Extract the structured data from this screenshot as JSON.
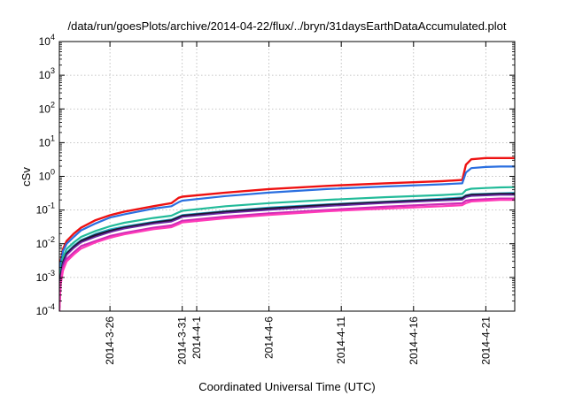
{
  "chart_data": {
    "type": "line",
    "title": "/data/run/goesPlots/archive/2014-04-22/flux/../bryn/31daysEarthDataAccumulated.plot",
    "xlabel": "Coordinated Universal Time (UTC)",
    "ylabel": "cSv",
    "yscale": "log",
    "ylim": [
      0.0001,
      10000
    ],
    "xlim": [
      "2014-03-22T12:00",
      "2014-04-23T00:00"
    ],
    "grid": true,
    "legend": "none",
    "x_ticks": [
      "2014-3-26",
      "2014-3-31",
      "2014-4-1",
      "2014-4-6",
      "2014-4-11",
      "2014-4-16",
      "2014-4-21"
    ],
    "x_tick_dates": [
      "2014-03-26",
      "2014-03-31",
      "2014-04-01",
      "2014-04-06",
      "2014-04-11",
      "2014-04-16",
      "2014-04-21"
    ],
    "y_ticks": [
      {
        "base": "10",
        "exp": "-4",
        "value": 0.0001
      },
      {
        "base": "10",
        "exp": "-3",
        "value": 0.001
      },
      {
        "base": "10",
        "exp": "-2",
        "value": 0.01
      },
      {
        "base": "10",
        "exp": "-1",
        "value": 0.1
      },
      {
        "base": "10",
        "exp": "0",
        "value": 1
      },
      {
        "base": "10",
        "exp": "1",
        "value": 10
      },
      {
        "base": "10",
        "exp": "2",
        "value": 100
      },
      {
        "base": "10",
        "exp": "3",
        "value": 1000
      },
      {
        "base": "10",
        "exp": "4",
        "value": 10000
      }
    ],
    "series": [
      {
        "color": "#ee1111",
        "width": 2.4,
        "x": [
          "2014-03-22T12:00",
          "2014-03-22T14:00",
          "2014-03-22T18:00",
          "2014-03-23T00:00",
          "2014-03-23T12:00",
          "2014-03-24T00:00",
          "2014-03-25T00:00",
          "2014-03-26T00:00",
          "2014-03-27T00:00",
          "2014-03-29T00:00",
          "2014-03-30T06:00",
          "2014-03-30T18:00",
          "2014-03-31T00:00",
          "2014-04-03T00:00",
          "2014-04-06T00:00",
          "2014-04-10T00:00",
          "2014-04-14T00:00",
          "2014-04-18T00:00",
          "2014-04-19T09:00",
          "2014-04-19T15:00",
          "2014-04-20T00:00",
          "2014-04-21T00:00",
          "2014-04-22T00:00",
          "2014-04-23T00:00"
        ],
        "y": [
          0.0004,
          0.003,
          0.007,
          0.012,
          0.02,
          0.03,
          0.05,
          0.07,
          0.09,
          0.13,
          0.16,
          0.23,
          0.25,
          0.33,
          0.42,
          0.52,
          0.62,
          0.72,
          0.78,
          2.2,
          3.2,
          3.5,
          3.5,
          3.5
        ]
      },
      {
        "color": "#2a6fe0",
        "width": 2.2,
        "x": [
          "2014-03-22T12:00",
          "2014-03-22T14:00",
          "2014-03-22T18:00",
          "2014-03-23T00:00",
          "2014-03-23T12:00",
          "2014-03-24T00:00",
          "2014-03-25T00:00",
          "2014-03-26T00:00",
          "2014-03-27T00:00",
          "2014-03-29T00:00",
          "2014-03-30T06:00",
          "2014-03-30T18:00",
          "2014-03-31T00:00",
          "2014-04-03T00:00",
          "2014-04-06T00:00",
          "2014-04-10T00:00",
          "2014-04-14T00:00",
          "2014-04-18T00:00",
          "2014-04-19T09:00",
          "2014-04-19T15:00",
          "2014-04-20T00:00",
          "2014-04-21T00:00",
          "2014-04-22T00:00",
          "2014-04-23T00:00"
        ],
        "y": [
          0.0003,
          0.0025,
          0.006,
          0.01,
          0.016,
          0.025,
          0.04,
          0.06,
          0.075,
          0.11,
          0.13,
          0.17,
          0.19,
          0.26,
          0.33,
          0.42,
          0.5,
          0.58,
          0.62,
          1.3,
          1.75,
          1.9,
          1.95,
          1.95
        ]
      },
      {
        "color": "#22bb99",
        "width": 2.2,
        "x": [
          "2014-03-22T12:00",
          "2014-03-22T14:00",
          "2014-03-22T18:00",
          "2014-03-23T00:00",
          "2014-03-23T12:00",
          "2014-03-24T00:00",
          "2014-03-25T00:00",
          "2014-03-26T00:00",
          "2014-03-27T00:00",
          "2014-03-29T00:00",
          "2014-03-30T06:00",
          "2014-03-30T18:00",
          "2014-03-31T00:00",
          "2014-04-03T00:00",
          "2014-04-06T00:00",
          "2014-04-10T00:00",
          "2014-04-14T00:00",
          "2014-04-18T00:00",
          "2014-04-19T09:00",
          "2014-04-19T15:00",
          "2014-04-20T00:00",
          "2014-04-21T00:00",
          "2014-04-22T00:00",
          "2014-04-23T00:00"
        ],
        "y": [
          0.0002,
          0.0015,
          0.004,
          0.007,
          0.011,
          0.016,
          0.024,
          0.033,
          0.042,
          0.058,
          0.068,
          0.085,
          0.095,
          0.13,
          0.16,
          0.2,
          0.24,
          0.28,
          0.3,
          0.39,
          0.43,
          0.45,
          0.47,
          0.48
        ]
      },
      {
        "color": "#27b0c9",
        "width": 1.6,
        "x": [
          "2014-03-22T12:00",
          "2014-03-22T14:00",
          "2014-03-22T18:00",
          "2014-03-23T00:00",
          "2014-03-23T12:00",
          "2014-03-24T00:00",
          "2014-03-25T00:00",
          "2014-03-26T00:00",
          "2014-03-27T00:00",
          "2014-03-29T00:00",
          "2014-03-30T06:00",
          "2014-03-30T18:00",
          "2014-03-31T00:00",
          "2014-04-03T00:00",
          "2014-04-06T00:00",
          "2014-04-10T00:00",
          "2014-04-14T00:00",
          "2014-04-18T00:00",
          "2014-04-19T09:00",
          "2014-04-19T15:00",
          "2014-04-20T00:00",
          "2014-04-21T00:00",
          "2014-04-22T00:00",
          "2014-04-23T00:00"
        ],
        "y": [
          0.00015,
          0.0011,
          0.003,
          0.0055,
          0.009,
          0.013,
          0.02,
          0.027,
          0.033,
          0.045,
          0.053,
          0.065,
          0.072,
          0.095,
          0.12,
          0.15,
          0.18,
          0.22,
          0.24,
          0.28,
          0.3,
          0.31,
          0.32,
          0.33
        ]
      },
      {
        "color": "#221133",
        "width": 2.6,
        "x": [
          "2014-03-22T12:00",
          "2014-03-22T14:00",
          "2014-03-22T18:00",
          "2014-03-23T00:00",
          "2014-03-23T12:00",
          "2014-03-24T00:00",
          "2014-03-25T00:00",
          "2014-03-26T00:00",
          "2014-03-27T00:00",
          "2014-03-29T00:00",
          "2014-03-30T06:00",
          "2014-03-30T18:00",
          "2014-03-31T00:00",
          "2014-04-03T00:00",
          "2014-04-06T00:00",
          "2014-04-10T00:00",
          "2014-04-14T00:00",
          "2014-04-18T00:00",
          "2014-04-19T09:00",
          "2014-04-19T15:00",
          "2014-04-20T00:00",
          "2014-04-21T00:00",
          "2014-04-22T00:00",
          "2014-04-23T00:00"
        ],
        "y": [
          0.00013,
          0.001,
          0.0027,
          0.005,
          0.008,
          0.012,
          0.018,
          0.024,
          0.03,
          0.042,
          0.049,
          0.06,
          0.067,
          0.088,
          0.11,
          0.14,
          0.17,
          0.2,
          0.22,
          0.26,
          0.28,
          0.29,
          0.3,
          0.3
        ]
      },
      {
        "color": "#6a2aa5",
        "width": 1.6,
        "x": [
          "2014-03-22T12:00",
          "2014-03-22T14:00",
          "2014-03-22T18:00",
          "2014-03-23T00:00",
          "2014-03-23T12:00",
          "2014-03-24T00:00",
          "2014-03-25T00:00",
          "2014-03-26T00:00",
          "2014-03-27T00:00",
          "2014-03-29T00:00",
          "2014-03-30T06:00",
          "2014-03-30T18:00",
          "2014-03-31T00:00",
          "2014-04-03T00:00",
          "2014-04-06T00:00",
          "2014-04-10T00:00",
          "2014-04-14T00:00",
          "2014-04-18T00:00",
          "2014-04-19T09:00",
          "2014-04-19T15:00",
          "2014-04-20T00:00",
          "2014-04-21T00:00",
          "2014-04-22T00:00",
          "2014-04-23T00:00"
        ],
        "y": [
          0.00012,
          0.0009,
          0.0025,
          0.0046,
          0.0074,
          0.011,
          0.016,
          0.022,
          0.028,
          0.039,
          0.045,
          0.055,
          0.062,
          0.082,
          0.1,
          0.13,
          0.16,
          0.19,
          0.2,
          0.24,
          0.26,
          0.27,
          0.28,
          0.28
        ]
      },
      {
        "color": "#cc2ab5",
        "width": 2.2,
        "x": [
          "2014-03-22T12:00",
          "2014-03-22T14:00",
          "2014-03-22T18:00",
          "2014-03-23T00:00",
          "2014-03-23T12:00",
          "2014-03-24T00:00",
          "2014-03-25T00:00",
          "2014-03-26T00:00",
          "2014-03-27T00:00",
          "2014-03-29T00:00",
          "2014-03-30T06:00",
          "2014-03-30T18:00",
          "2014-03-31T00:00",
          "2014-04-03T00:00",
          "2014-04-06T00:00",
          "2014-04-10T00:00",
          "2014-04-14T00:00",
          "2014-04-18T00:00",
          "2014-04-19T09:00",
          "2014-04-19T15:00",
          "2014-04-20T00:00",
          "2014-04-21T00:00",
          "2014-04-22T00:00",
          "2014-04-23T00:00"
        ],
        "y": [
          0.0001,
          0.0007,
          0.0019,
          0.0035,
          0.0056,
          0.0085,
          0.012,
          0.017,
          0.021,
          0.03,
          0.035,
          0.043,
          0.048,
          0.064,
          0.08,
          0.1,
          0.125,
          0.15,
          0.16,
          0.19,
          0.2,
          0.21,
          0.22,
          0.22
        ]
      },
      {
        "color": "#ff3ab8",
        "width": 2.2,
        "x": [
          "2014-03-22T12:00",
          "2014-03-22T14:00",
          "2014-03-22T18:00",
          "2014-03-23T00:00",
          "2014-03-23T12:00",
          "2014-03-24T00:00",
          "2014-03-25T00:00",
          "2014-03-26T00:00",
          "2014-03-27T00:00",
          "2014-03-29T00:00",
          "2014-03-30T06:00",
          "2014-03-30T18:00",
          "2014-03-31T00:00",
          "2014-04-03T00:00",
          "2014-04-06T00:00",
          "2014-04-10T00:00",
          "2014-04-14T00:00",
          "2014-04-18T00:00",
          "2014-04-19T09:00",
          "2014-04-19T15:00",
          "2014-04-20T00:00",
          "2014-04-21T00:00",
          "2014-04-22T00:00",
          "2014-04-23T00:00"
        ],
        "y": [
          0.0001,
          0.0006,
          0.0016,
          0.003,
          0.0048,
          0.0072,
          0.011,
          0.015,
          0.019,
          0.027,
          0.031,
          0.038,
          0.043,
          0.057,
          0.072,
          0.092,
          0.11,
          0.13,
          0.14,
          0.16,
          0.18,
          0.19,
          0.2,
          0.2
        ]
      }
    ]
  }
}
